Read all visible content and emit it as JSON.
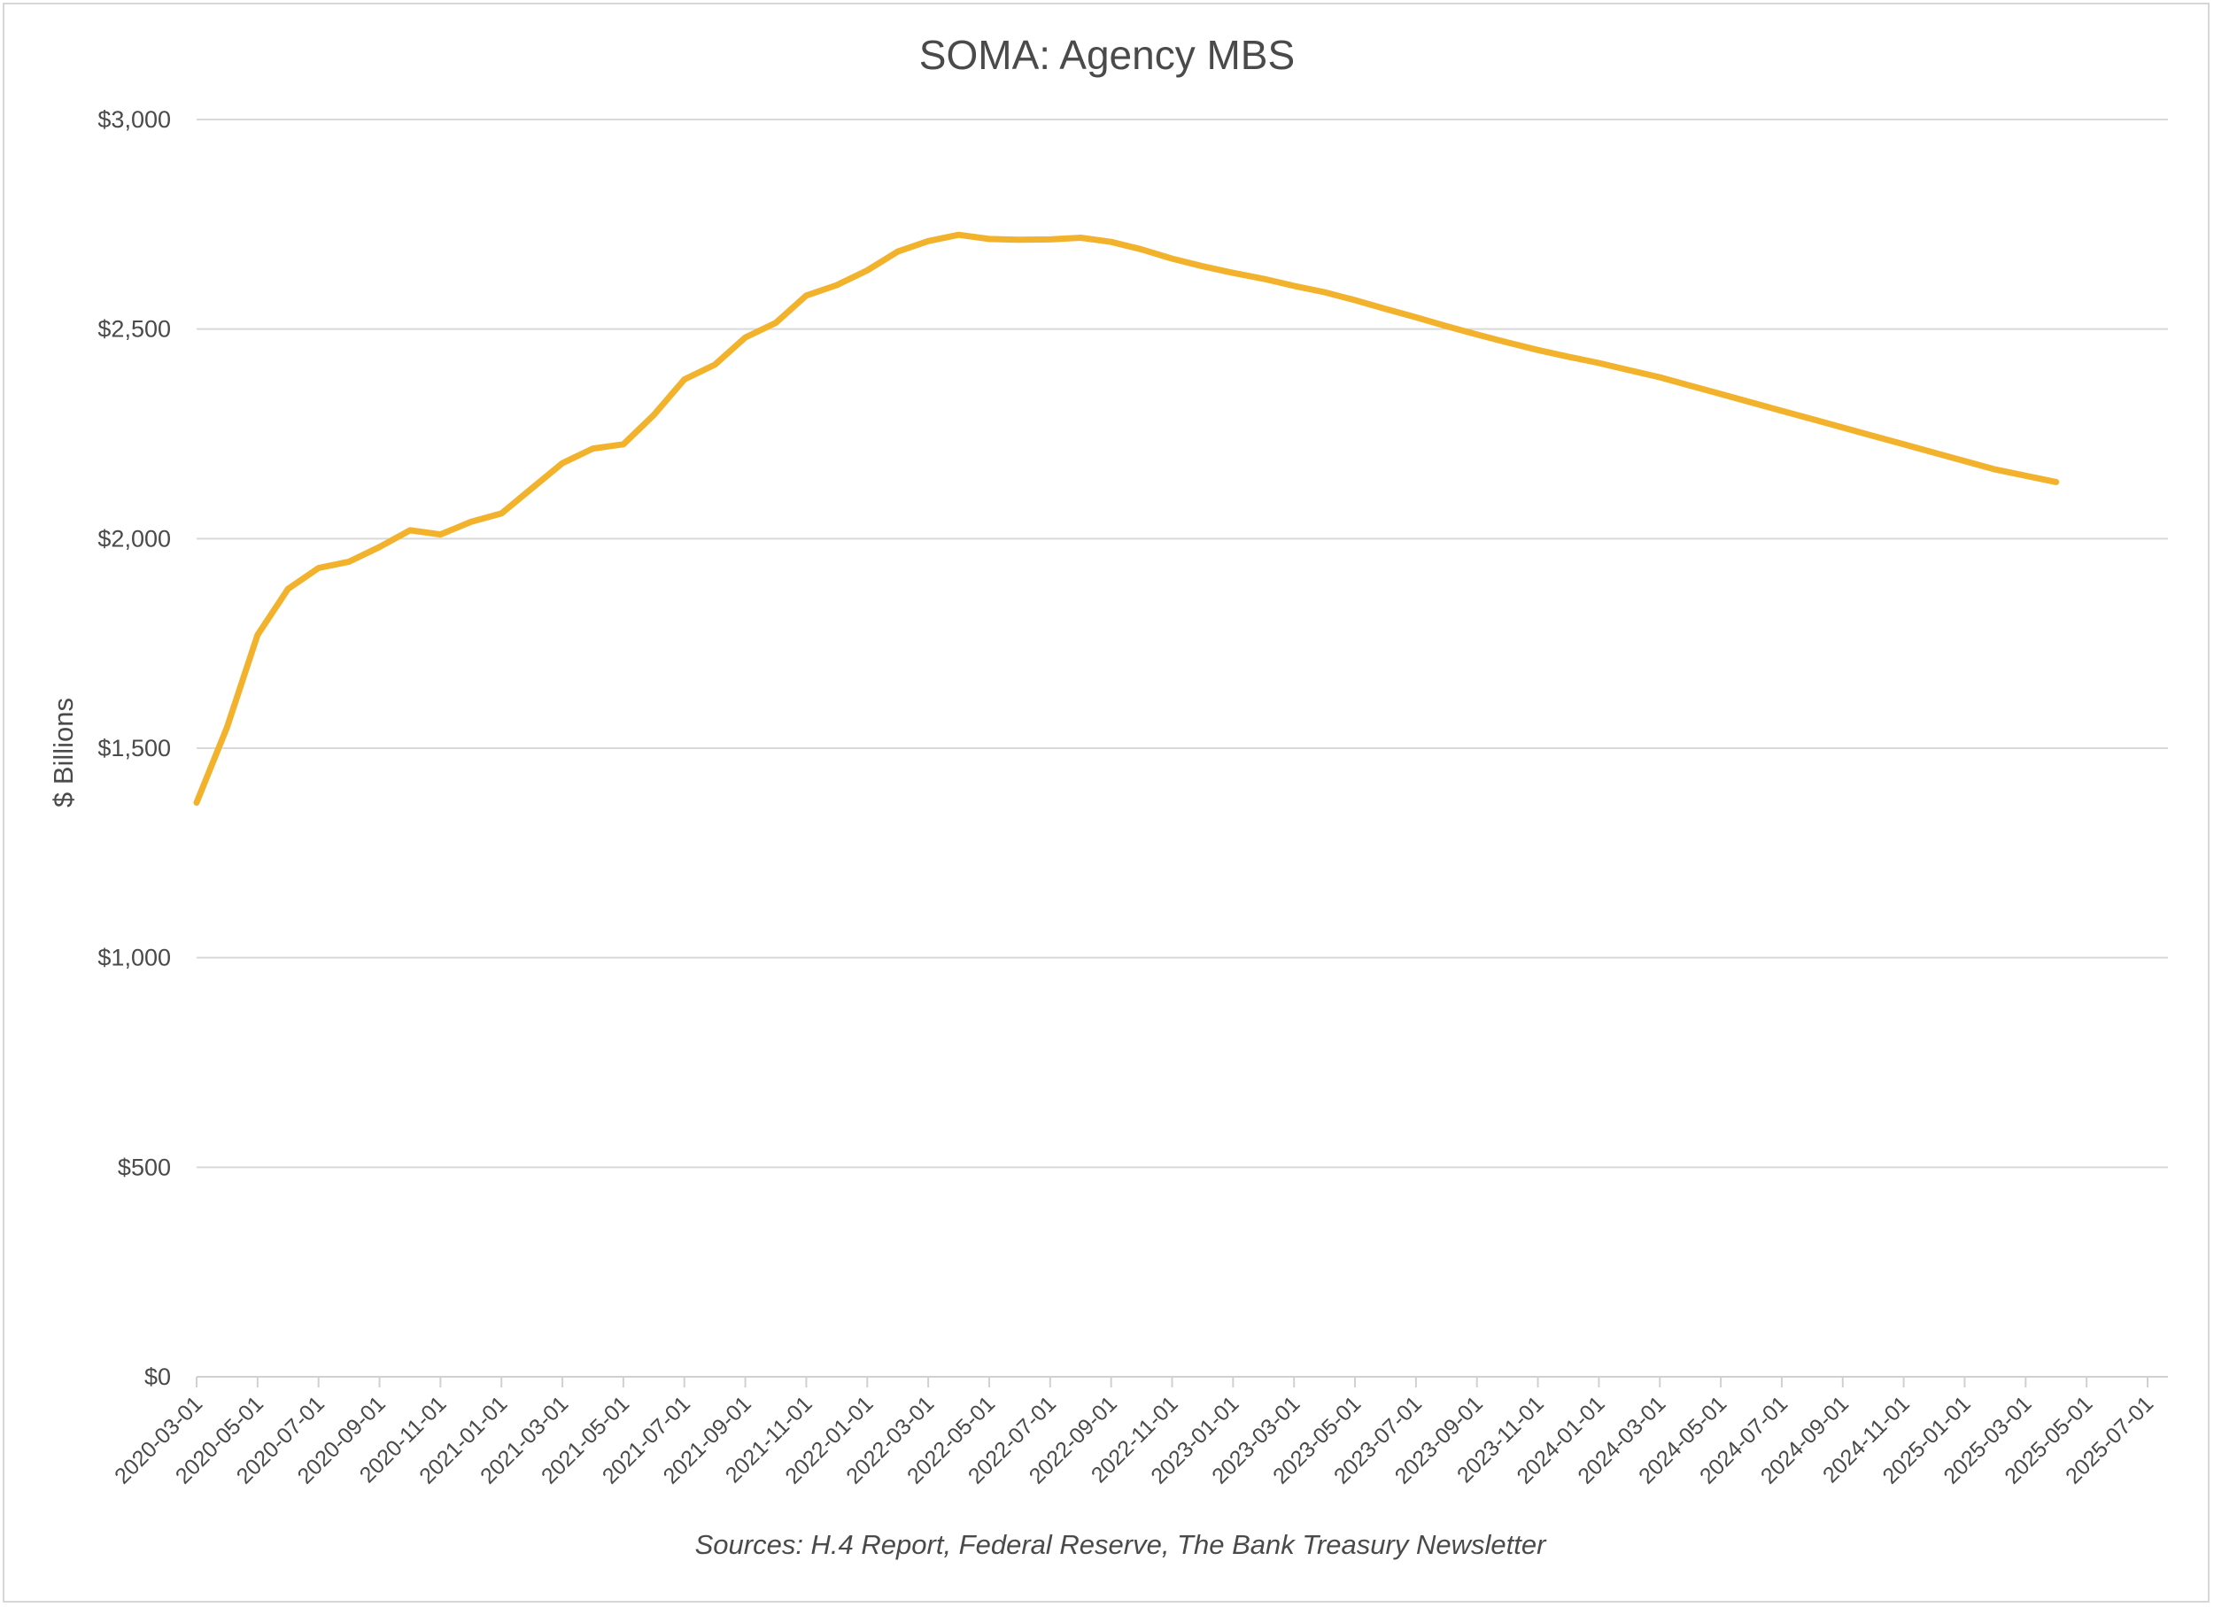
{
  "chart_data": {
    "type": "line",
    "title": "SOMA: Agency MBS",
    "xlabel": "",
    "ylabel": "$ Billions",
    "source": "Sources: H.4 Report, Federal Reserve, The Bank Treasury Newsletter",
    "ylim": [
      0,
      3000
    ],
    "yticks": [
      0,
      500,
      1000,
      1500,
      2000,
      2500,
      3000
    ],
    "ytick_labels": [
      "$0",
      "$500",
      "$1,000",
      "$1,500",
      "$2,000",
      "$2,500",
      "$3,000"
    ],
    "xtick_labels": [
      "2020-03-01",
      "2020-05-01",
      "2020-07-01",
      "2020-09-01",
      "2020-11-01",
      "2021-01-01",
      "2021-03-01",
      "2021-05-01",
      "2021-07-01",
      "2021-09-01",
      "2021-11-01",
      "2022-01-01",
      "2022-03-01",
      "2022-05-01",
      "2022-07-01",
      "2022-09-01",
      "2022-11-01",
      "2023-01-01",
      "2023-03-01",
      "2023-05-01",
      "2023-07-01",
      "2023-09-01",
      "2023-11-01",
      "2024-01-01",
      "2024-03-01",
      "2024-05-01",
      "2024-07-01",
      "2024-09-01",
      "2024-11-01",
      "2025-01-01",
      "2025-03-01",
      "2025-05-01",
      "2025-07-01"
    ],
    "grid": true,
    "line_color": "#f2b22c",
    "series": [
      {
        "name": "Agency MBS",
        "x_start": "2020-03-01",
        "frequency": "monthly",
        "values": [
          1370,
          1550,
          1770,
          1880,
          1930,
          1945,
          1980,
          2020,
          2010,
          2040,
          2060,
          2120,
          2180,
          2215,
          2225,
          2295,
          2380,
          2415,
          2480,
          2515,
          2580,
          2605,
          2640,
          2685,
          2710,
          2725,
          2715,
          2713,
          2714,
          2718,
          2708,
          2690,
          2668,
          2650,
          2634,
          2620,
          2603,
          2588,
          2569,
          2548,
          2528,
          2507,
          2487,
          2468,
          2450,
          2434,
          2419,
          2402,
          2385,
          2365,
          2345,
          2325,
          2305,
          2285,
          2265,
          2245,
          2225,
          2205,
          2185,
          2165,
          2150,
          2135
        ]
      }
    ]
  }
}
